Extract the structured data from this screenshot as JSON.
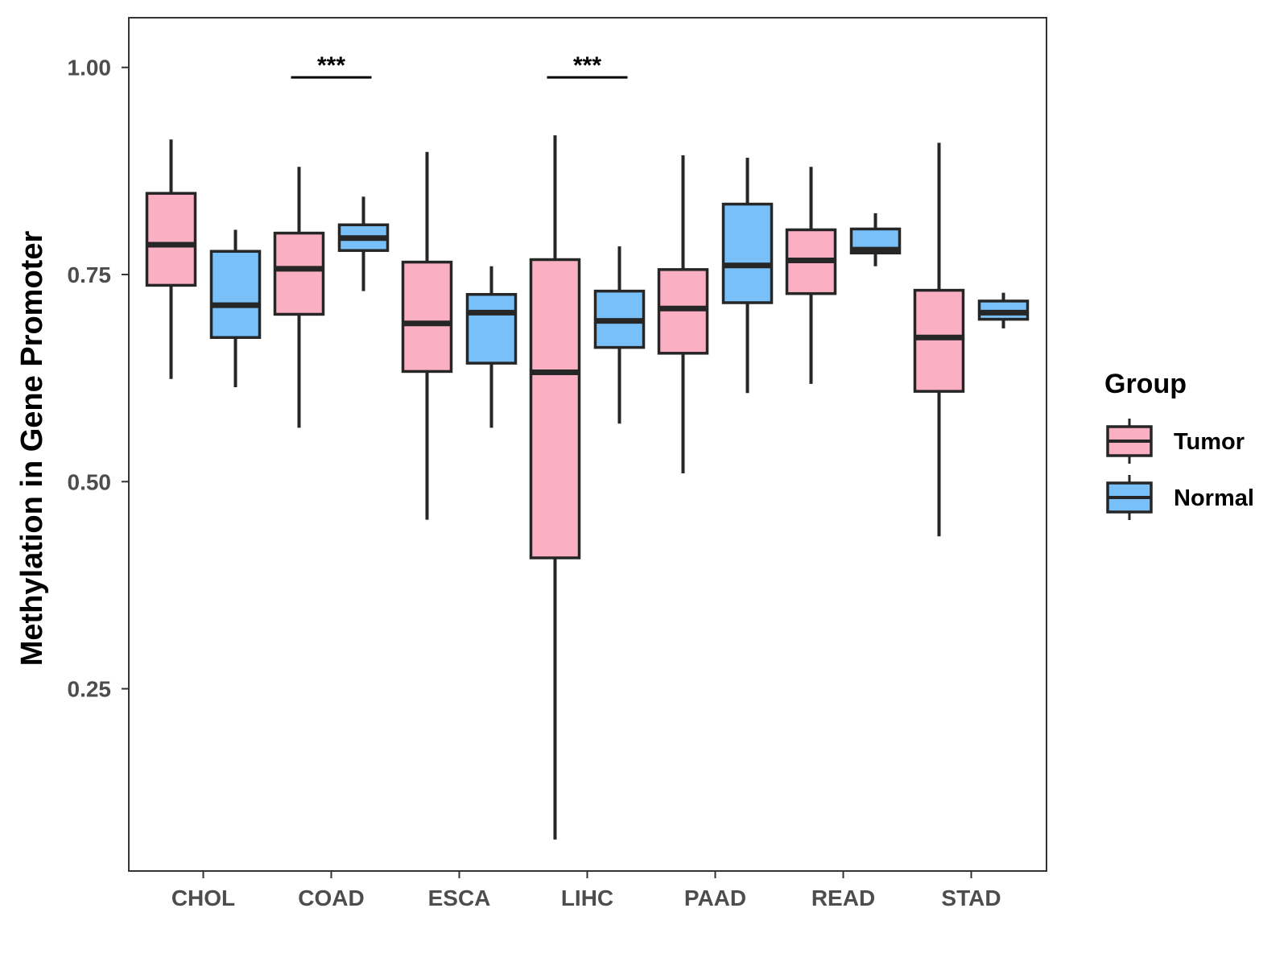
{
  "chart_data": {
    "type": "boxplot",
    "title": "",
    "xlabel": "",
    "ylabel": "Methylation in Gene Promoter",
    "ylim": [
      0.03,
      1.06
    ],
    "yticks": [
      0.25,
      0.5,
      0.75,
      1.0
    ],
    "ytick_labels": [
      "0.25",
      "0.50",
      "0.75",
      "1.00"
    ],
    "categories": [
      "CHOL",
      "COAD",
      "ESCA",
      "LIHC",
      "PAAD",
      "READ",
      "STAD"
    ],
    "legend": {
      "title": "Group",
      "position": "right",
      "entries": [
        "Tumor",
        "Normal"
      ]
    },
    "colors": {
      "Tumor": "#FBAFC3",
      "Normal": "#79C0F9",
      "outline": "#262626",
      "panel_border": "#333333"
    },
    "series": [
      {
        "name": "Tumor",
        "boxes": [
          {
            "category": "CHOL",
            "whisker_low": 0.624,
            "q1": 0.737,
            "median": 0.786,
            "q3": 0.848,
            "whisker_high": 0.913
          },
          {
            "category": "COAD",
            "whisker_low": 0.565,
            "q1": 0.702,
            "median": 0.757,
            "q3": 0.8,
            "whisker_high": 0.88
          },
          {
            "category": "ESCA",
            "whisker_low": 0.454,
            "q1": 0.633,
            "median": 0.691,
            "q3": 0.765,
            "whisker_high": 0.898
          },
          {
            "category": "LIHC",
            "whisker_low": 0.068,
            "q1": 0.408,
            "median": 0.632,
            "q3": 0.768,
            "whisker_high": 0.918
          },
          {
            "category": "PAAD",
            "whisker_low": 0.51,
            "q1": 0.655,
            "median": 0.709,
            "q3": 0.756,
            "whisker_high": 0.894
          },
          {
            "category": "READ",
            "whisker_low": 0.618,
            "q1": 0.727,
            "median": 0.767,
            "q3": 0.804,
            "whisker_high": 0.88
          },
          {
            "category": "STAD",
            "whisker_low": 0.434,
            "q1": 0.609,
            "median": 0.674,
            "q3": 0.731,
            "whisker_high": 0.909
          }
        ]
      },
      {
        "name": "Normal",
        "boxes": [
          {
            "category": "CHOL",
            "whisker_low": 0.614,
            "q1": 0.674,
            "median": 0.713,
            "q3": 0.778,
            "whisker_high": 0.804
          },
          {
            "category": "COAD",
            "whisker_low": 0.73,
            "q1": 0.779,
            "median": 0.794,
            "q3": 0.81,
            "whisker_high": 0.844
          },
          {
            "category": "ESCA",
            "whisker_low": 0.565,
            "q1": 0.643,
            "median": 0.704,
            "q3": 0.726,
            "whisker_high": 0.76
          },
          {
            "category": "LIHC",
            "whisker_low": 0.57,
            "q1": 0.662,
            "median": 0.694,
            "q3": 0.73,
            "whisker_high": 0.784
          },
          {
            "category": "PAAD",
            "whisker_low": 0.607,
            "q1": 0.716,
            "median": 0.761,
            "q3": 0.835,
            "whisker_high": 0.891
          },
          {
            "category": "READ",
            "whisker_low": 0.76,
            "q1": 0.776,
            "median": 0.78,
            "q3": 0.805,
            "whisker_high": 0.824
          },
          {
            "category": "STAD",
            "whisker_low": 0.685,
            "q1": 0.696,
            "median": 0.704,
            "q3": 0.718,
            "whisker_high": 0.728
          }
        ]
      }
    ],
    "annotations": [
      {
        "category": "COAD",
        "label": "***",
        "y": 0.988
      },
      {
        "category": "LIHC",
        "label": "***",
        "y": 0.988
      }
    ]
  }
}
